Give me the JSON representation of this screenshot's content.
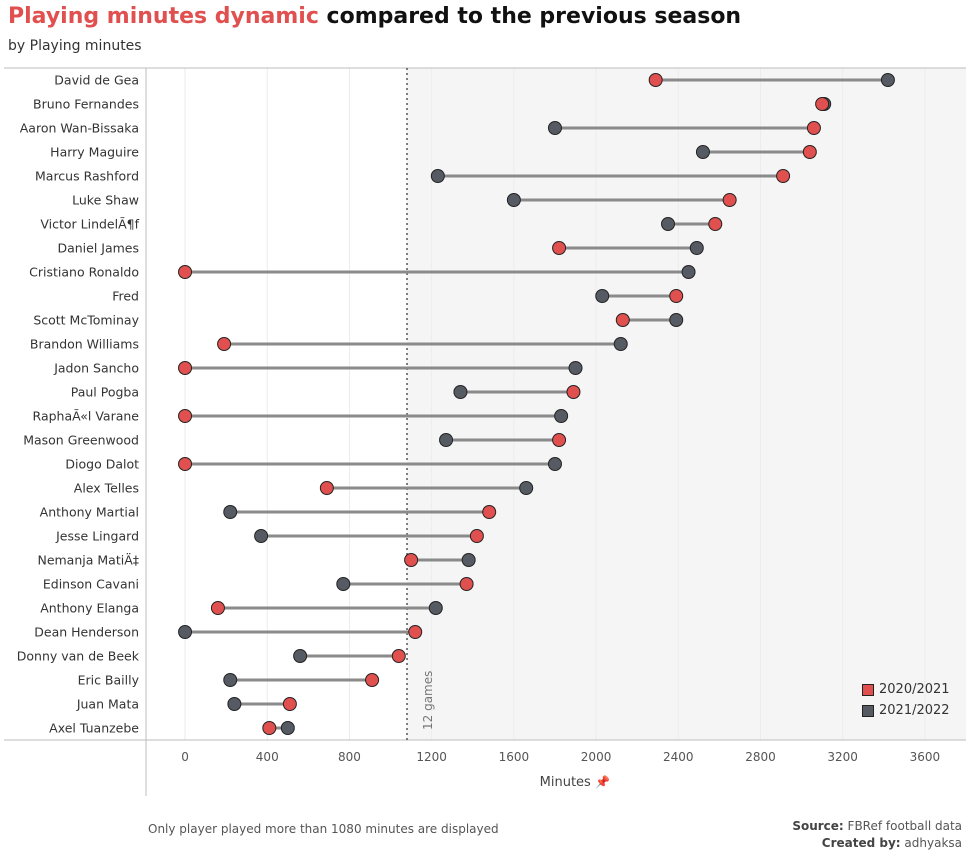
{
  "header": {
    "title_highlight": "Playing minutes dynamic",
    "title_rest": " compared to the previous season",
    "subtitle": "by Playing minutes"
  },
  "footer": {
    "note": "Only player played more than 1080 minutes are displayed",
    "source_label": "Source:",
    "source_value": " FBRef football data",
    "created_label": "Created by:",
    "created_value": " adhyaksa"
  },
  "colors": {
    "season_2020": "#e0504f",
    "season_2021": "#555a63",
    "connector": "#8a8a8a",
    "shaded_area": "#f5f5f5"
  },
  "chart_data": {
    "type": "dumbbell",
    "xlabel": "Minutes",
    "xlim": [
      -190,
      3800
    ],
    "xticks": [
      0,
      400,
      800,
      1200,
      1600,
      2000,
      2400,
      2800,
      3200,
      3600
    ],
    "reference_line": {
      "value": 1080,
      "label": "12 games"
    },
    "legend": {
      "position": "bottom-right"
    },
    "series": [
      {
        "name": "2020/2021",
        "color": "#e0504f"
      },
      {
        "name": "2021/2022",
        "color": "#555a63"
      }
    ],
    "categories": [
      "David de Gea",
      "Bruno Fernandes",
      "Aaron Wan-Bissaka",
      "Harry Maguire",
      "Marcus Rashford",
      "Luke Shaw",
      "Victor LindelÃ¶f",
      "Daniel James",
      "Cristiano Ronaldo",
      "Fred",
      "Scott McTominay",
      "Brandon Williams",
      "Jadon Sancho",
      "Paul Pogba",
      "RaphaÃ«l Varane",
      "Mason Greenwood",
      "Diogo Dalot",
      "Alex Telles",
      "Anthony Martial",
      "Jesse Lingard",
      "Nemanja MatiÄ‡",
      "Edinson Cavani",
      "Anthony Elanga",
      "Dean Henderson",
      "Donny van de Beek",
      "Eric Bailly",
      "Juan Mata",
      "Axel Tuanzebe"
    ],
    "values_2020_2021": [
      2290,
      3100,
      3060,
      3040,
      2910,
      2650,
      2580,
      1820,
      0,
      2390,
      2130,
      190,
      0,
      1890,
      0,
      1820,
      0,
      690,
      1480,
      1420,
      1100,
      1370,
      160,
      1120,
      1040,
      910,
      510,
      410
    ],
    "values_2021_2022": [
      3420,
      3110,
      1800,
      2520,
      1230,
      1600,
      2350,
      2490,
      2450,
      2030,
      2390,
      2120,
      1900,
      1340,
      1830,
      1270,
      1800,
      1660,
      220,
      370,
      1380,
      770,
      1220,
      0,
      560,
      220,
      240,
      500
    ]
  }
}
